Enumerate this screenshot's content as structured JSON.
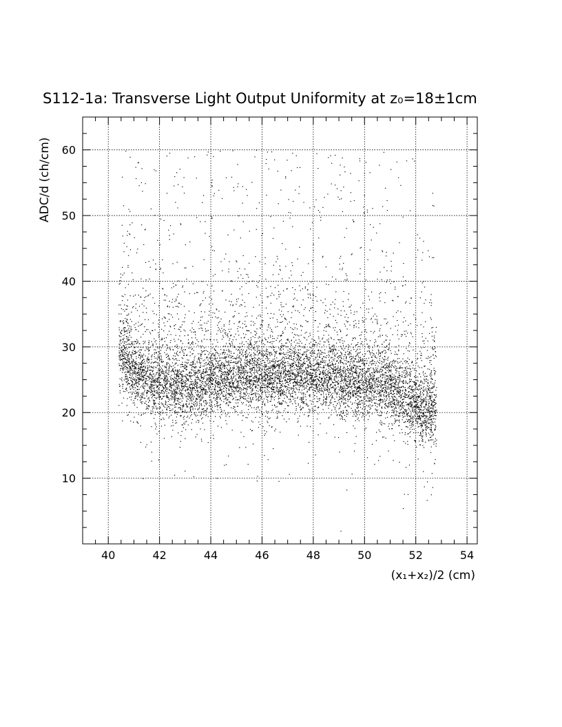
{
  "chart_data": {
    "type": "scatter",
    "title": "S112-1a: Transverse Light Output Uniformity at z₀=18±1cm",
    "xlabel": "(x₁+x₂)/2 (cm)",
    "ylabel": "ADC/d (ch/cm)",
    "xlim": [
      39,
      54.4
    ],
    "ylim": [
      0,
      65
    ],
    "x_ticks": [
      40,
      42,
      44,
      46,
      48,
      50,
      52,
      54
    ],
    "y_ticks": [
      10,
      20,
      30,
      40,
      50,
      60
    ],
    "x_tick_labels": [
      "40",
      "42",
      "44",
      "46",
      "48",
      "50",
      "52",
      "54"
    ],
    "y_tick_labels": [
      "10",
      "20",
      "30",
      "40",
      "50",
      "60"
    ],
    "grid": true,
    "grid_style": "dotted",
    "marker_color": "#000000",
    "point_count": 9000,
    "distribution": {
      "x_range": [
        40.4,
        52.8
      ],
      "core_band_y": [
        20,
        30
      ],
      "core_center_y": [
        [
          40.6,
          29
        ],
        [
          41.0,
          26
        ],
        [
          41.5,
          25
        ],
        [
          42.0,
          24.5
        ],
        [
          43.0,
          24
        ],
        [
          44.0,
          24.5
        ],
        [
          45.0,
          25.5
        ],
        [
          46.0,
          25.5
        ],
        [
          47.0,
          25.5
        ],
        [
          48.0,
          25.5
        ],
        [
          49.0,
          25
        ],
        [
          50.0,
          24.5
        ],
        [
          51.0,
          24
        ],
        [
          51.5,
          22.5
        ],
        [
          52.0,
          21
        ],
        [
          52.7,
          20.5
        ]
      ],
      "tail_y_max": 60
    }
  }
}
